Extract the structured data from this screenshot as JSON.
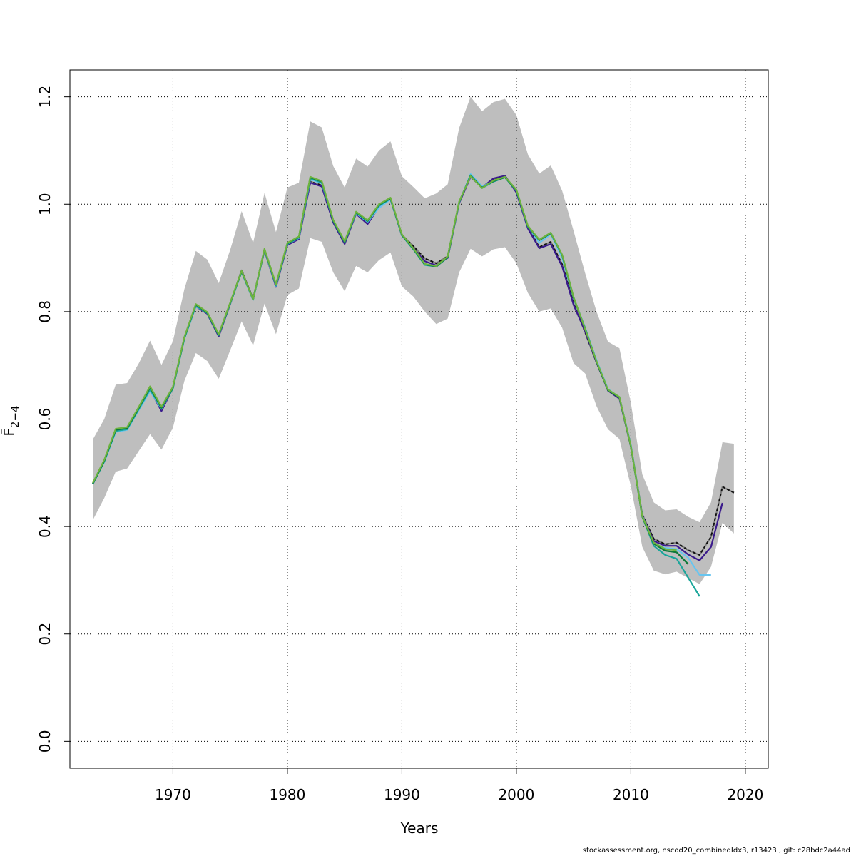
{
  "chart_data": {
    "type": "line",
    "title": "",
    "xlabel": "Years",
    "ylabel": "F̄",
    "ylabel_sub": "2−4",
    "xlim": [
      1961,
      2022
    ],
    "ylim": [
      -0.05,
      1.25
    ],
    "xticks": [
      1970,
      1980,
      1990,
      2000,
      2010,
      2020
    ],
    "yticks": [
      0.0,
      0.2,
      0.4,
      0.6,
      0.8,
      1.0,
      1.2
    ],
    "xtick_labels": [
      "1970",
      "1980",
      "1990",
      "2000",
      "2010",
      "2020"
    ],
    "ytick_labels": [
      "0.0",
      "0.2",
      "0.4",
      "0.6",
      "0.8",
      "1.0",
      "1.2"
    ],
    "grid": true,
    "confidence_band": {
      "x": [
        1963,
        1964,
        1965,
        1966,
        1967,
        1968,
        1969,
        1970,
        1971,
        1972,
        1973,
        1974,
        1975,
        1976,
        1977,
        1978,
        1979,
        1980,
        1981,
        1982,
        1983,
        1984,
        1985,
        1986,
        1987,
        1988,
        1989,
        1990,
        1991,
        1992,
        1993,
        1994,
        1995,
        1996,
        1997,
        1998,
        1999,
        2000,
        2001,
        2002,
        2003,
        2004,
        2005,
        2006,
        2007,
        2008,
        2009,
        2010,
        2011,
        2012,
        2013,
        2014,
        2015,
        2016,
        2017,
        2018,
        2019
      ],
      "upper": [
        0.562,
        0.6,
        0.664,
        0.667,
        0.703,
        0.746,
        0.701,
        0.745,
        0.842,
        0.913,
        0.897,
        0.853,
        0.915,
        0.987,
        0.928,
        1.021,
        0.948,
        1.031,
        1.04,
        1.154,
        1.143,
        1.071,
        1.031,
        1.085,
        1.07,
        1.1,
        1.117,
        1.052,
        1.032,
        1.011,
        1.02,
        1.037,
        1.142,
        1.2,
        1.173,
        1.19,
        1.196,
        1.166,
        1.093,
        1.057,
        1.072,
        1.025,
        0.95,
        0.872,
        0.8,
        0.744,
        0.732,
        0.63,
        0.497,
        0.445,
        0.43,
        0.432,
        0.418,
        0.408,
        0.445,
        0.557,
        0.554
      ],
      "lower": [
        0.412,
        0.453,
        0.502,
        0.508,
        0.54,
        0.572,
        0.543,
        0.584,
        0.671,
        0.723,
        0.708,
        0.675,
        0.728,
        0.782,
        0.737,
        0.815,
        0.758,
        0.831,
        0.843,
        0.937,
        0.93,
        0.873,
        0.838,
        0.885,
        0.873,
        0.896,
        0.91,
        0.847,
        0.828,
        0.8,
        0.777,
        0.787,
        0.873,
        0.917,
        0.903,
        0.916,
        0.92,
        0.89,
        0.835,
        0.8,
        0.806,
        0.77,
        0.704,
        0.685,
        0.624,
        0.581,
        0.563,
        0.475,
        0.362,
        0.318,
        0.311,
        0.316,
        0.304,
        0.293,
        0.325,
        0.407,
        0.387
      ]
    },
    "series": [
      {
        "color": "#7f7f7f",
        "dashed": false,
        "x": [
          1963,
          1964,
          1965,
          1966,
          1967,
          1968,
          1969,
          1970,
          1971,
          1972,
          1973,
          1974,
          1975,
          1976,
          1977,
          1978,
          1979,
          1980,
          1981,
          1982,
          1983,
          1984,
          1985,
          1986,
          1987,
          1988,
          1989,
          1990,
          1991,
          1992,
          1993,
          1994,
          1995,
          1996,
          1997,
          1998,
          1999,
          2000,
          2001,
          2002,
          2003,
          2004,
          2005,
          2006,
          2007,
          2008,
          2009,
          2010,
          2011,
          2012,
          2013,
          2014,
          2015,
          2016,
          2017,
          2018,
          2019
        ],
        "y": [
          0.48,
          0.523,
          0.58,
          0.583,
          0.618,
          0.657,
          0.617,
          0.659,
          0.752,
          0.811,
          0.797,
          0.755,
          0.815,
          0.877,
          0.824,
          0.915,
          0.848,
          0.925,
          0.937,
          1.042,
          1.035,
          0.968,
          0.927,
          0.983,
          0.965,
          0.997,
          1.01,
          0.943,
          0.922,
          0.899,
          0.89,
          0.903,
          1.003,
          1.052,
          1.032,
          1.046,
          1.052,
          1.023,
          0.957,
          0.92,
          0.93,
          0.888,
          0.815,
          0.762,
          0.705,
          0.654,
          0.64,
          0.551,
          0.422,
          0.377,
          0.367,
          0.37,
          0.356,
          0.347,
          0.381,
          0.474,
          0.463
        ]
      },
      {
        "color": "#111111",
        "dashed": true,
        "x": [
          1963,
          1964,
          1965,
          1966,
          1967,
          1968,
          1969,
          1970,
          1971,
          1972,
          1973,
          1974,
          1975,
          1976,
          1977,
          1978,
          1979,
          1980,
          1981,
          1982,
          1983,
          1984,
          1985,
          1986,
          1987,
          1988,
          1989,
          1990,
          1991,
          1992,
          1993,
          1994,
          1995,
          1996,
          1997,
          1998,
          1999,
          2000,
          2001,
          2002,
          2003,
          2004,
          2005,
          2006,
          2007,
          2008,
          2009,
          2010,
          2011,
          2012,
          2013,
          2014,
          2015,
          2016,
          2017,
          2018,
          2019
        ],
        "y": [
          0.48,
          0.523,
          0.58,
          0.583,
          0.618,
          0.657,
          0.617,
          0.659,
          0.752,
          0.811,
          0.797,
          0.755,
          0.815,
          0.877,
          0.824,
          0.915,
          0.848,
          0.925,
          0.937,
          1.042,
          1.035,
          0.968,
          0.927,
          0.983,
          0.965,
          0.997,
          1.01,
          0.943,
          0.922,
          0.899,
          0.89,
          0.903,
          1.003,
          1.052,
          1.032,
          1.046,
          1.052,
          1.023,
          0.957,
          0.92,
          0.93,
          0.888,
          0.815,
          0.762,
          0.705,
          0.654,
          0.64,
          0.551,
          0.422,
          0.377,
          0.367,
          0.37,
          0.356,
          0.347,
          0.381,
          0.474,
          0.463
        ]
      },
      {
        "color": "#3a1a8c",
        "dashed": false,
        "x": [
          1963,
          1964,
          1965,
          1966,
          1967,
          1968,
          1969,
          1970,
          1971,
          1972,
          1973,
          1974,
          1975,
          1976,
          1977,
          1978,
          1979,
          1980,
          1981,
          1982,
          1983,
          1984,
          1985,
          1986,
          1987,
          1988,
          1989,
          1990,
          1991,
          1992,
          1993,
          1994,
          1995,
          1996,
          1997,
          1998,
          1999,
          2000,
          2001,
          2002,
          2003,
          2004,
          2005,
          2006,
          2007,
          2008,
          2009,
          2010,
          2011,
          2012,
          2013,
          2014,
          2015,
          2016,
          2017,
          2018
        ],
        "y": [
          0.479,
          0.522,
          0.579,
          0.582,
          0.617,
          0.655,
          0.615,
          0.658,
          0.751,
          0.81,
          0.796,
          0.754,
          0.814,
          0.876,
          0.823,
          0.914,
          0.846,
          0.924,
          0.935,
          1.04,
          1.033,
          0.966,
          0.926,
          0.982,
          0.963,
          0.995,
          1.009,
          0.942,
          0.918,
          0.894,
          0.886,
          0.9,
          1.002,
          1.051,
          1.031,
          1.048,
          1.053,
          1.022,
          0.955,
          0.918,
          0.926,
          0.884,
          0.812,
          0.764,
          0.706,
          0.653,
          0.638,
          0.549,
          0.42,
          0.373,
          0.364,
          0.364,
          0.348,
          0.337,
          0.362,
          0.444
        ]
      },
      {
        "color": "#67c5f0",
        "dashed": false,
        "x": [
          1963,
          1964,
          1965,
          1966,
          1967,
          1968,
          1969,
          1970,
          1971,
          1972,
          1973,
          1974,
          1975,
          1976,
          1977,
          1978,
          1979,
          1980,
          1981,
          1982,
          1983,
          1984,
          1985,
          1986,
          1987,
          1988,
          1989,
          1990,
          1991,
          1992,
          1993,
          1994,
          1995,
          1996,
          1997,
          1998,
          1999,
          2000,
          2001,
          2002,
          2003,
          2004,
          2005,
          2006,
          2007,
          2008,
          2009,
          2010,
          2011,
          2012,
          2013,
          2014,
          2015,
          2016,
          2017
        ],
        "y": [
          0.48,
          0.52,
          0.576,
          0.58,
          0.616,
          0.652,
          0.619,
          0.658,
          0.75,
          0.81,
          0.798,
          0.757,
          0.815,
          0.874,
          0.822,
          0.915,
          0.848,
          0.926,
          0.937,
          1.046,
          1.039,
          0.97,
          0.93,
          0.983,
          0.967,
          0.993,
          1.009,
          0.943,
          0.917,
          0.889,
          0.885,
          0.902,
          1.003,
          1.056,
          1.033,
          1.042,
          1.05,
          1.025,
          0.959,
          0.928,
          0.944,
          0.9,
          0.825,
          0.77,
          0.71,
          0.656,
          0.64,
          0.552,
          0.42,
          0.368,
          0.36,
          0.358,
          0.342,
          0.31,
          0.31
        ]
      },
      {
        "color": "#1aa59a",
        "dashed": false,
        "x": [
          1963,
          1964,
          1965,
          1966,
          1967,
          1968,
          1969,
          1970,
          1971,
          1972,
          1973,
          1974,
          1975,
          1976,
          1977,
          1978,
          1979,
          1980,
          1981,
          1982,
          1983,
          1984,
          1985,
          1986,
          1987,
          1988,
          1989,
          1990,
          1991,
          1992,
          1993,
          1994,
          1995,
          1996,
          1997,
          1998,
          1999,
          2000,
          2001,
          2002,
          2003,
          2004,
          2005,
          2006,
          2007,
          2008,
          2009,
          2010,
          2011,
          2012,
          2013,
          2014,
          2015,
          2016
        ],
        "y": [
          0.479,
          0.521,
          0.578,
          0.581,
          0.618,
          0.655,
          0.62,
          0.657,
          0.75,
          0.811,
          0.797,
          0.756,
          0.815,
          0.874,
          0.822,
          0.915,
          0.849,
          0.926,
          0.938,
          1.048,
          1.04,
          0.969,
          0.929,
          0.984,
          0.968,
          0.997,
          1.01,
          0.942,
          0.916,
          0.887,
          0.884,
          0.901,
          1.004,
          1.054,
          1.03,
          1.042,
          1.05,
          1.025,
          0.958,
          0.933,
          0.947,
          0.905,
          0.825,
          0.77,
          0.707,
          0.654,
          0.641,
          0.55,
          0.418,
          0.364,
          0.347,
          0.34,
          0.305,
          0.27
        ]
      },
      {
        "color": "#0d7a3a",
        "dashed": false,
        "x": [
          1963,
          1964,
          1965,
          1966,
          1967,
          1968,
          1969,
          1970,
          1971,
          1972,
          1973,
          1974,
          1975,
          1976,
          1977,
          1978,
          1979,
          1980,
          1981,
          1982,
          1983,
          1984,
          1985,
          1986,
          1987,
          1988,
          1989,
          1990,
          1991,
          1992,
          1993,
          1994,
          1995,
          1996,
          1997,
          1998,
          1999,
          2000,
          2001,
          2002,
          2003,
          2004,
          2005,
          2006,
          2007,
          2008,
          2009,
          2010,
          2011,
          2012,
          2013,
          2014,
          2015
        ],
        "y": [
          0.48,
          0.522,
          0.58,
          0.583,
          0.62,
          0.659,
          0.621,
          0.659,
          0.752,
          0.813,
          0.798,
          0.757,
          0.816,
          0.875,
          0.823,
          0.916,
          0.85,
          0.927,
          0.939,
          1.05,
          1.042,
          0.97,
          0.93,
          0.985,
          0.969,
          0.999,
          1.011,
          0.943,
          0.917,
          0.888,
          0.884,
          0.902,
          1.004,
          1.053,
          1.031,
          1.043,
          1.05,
          1.026,
          0.959,
          0.933,
          0.946,
          0.905,
          0.826,
          0.768,
          0.707,
          0.654,
          0.64,
          0.549,
          0.418,
          0.368,
          0.355,
          0.352,
          0.33
        ]
      },
      {
        "color": "#6db33f",
        "dashed": false,
        "x": [
          1963,
          1964,
          1965,
          1966,
          1967,
          1968,
          1969,
          1970,
          1971,
          1972,
          1973,
          1974,
          1975,
          1976,
          1977,
          1978,
          1979,
          1980,
          1981,
          1982,
          1983,
          1984,
          1985,
          1986,
          1987,
          1988,
          1989,
          1990,
          1991,
          1992,
          1993,
          1994,
          1995,
          1996,
          1997,
          1998,
          1999,
          2000,
          2001,
          2002,
          2003,
          2004,
          2005,
          2006,
          2007,
          2008,
          2009,
          2010,
          2011,
          2012,
          2013,
          2014
        ],
        "y": [
          0.481,
          0.524,
          0.582,
          0.585,
          0.622,
          0.661,
          0.623,
          0.66,
          0.753,
          0.814,
          0.799,
          0.758,
          0.817,
          0.876,
          0.823,
          0.917,
          0.851,
          0.928,
          0.94,
          1.051,
          1.043,
          0.971,
          0.931,
          0.986,
          0.97,
          1.0,
          1.012,
          0.944,
          0.918,
          0.889,
          0.885,
          0.903,
          1.005,
          1.052,
          1.03,
          1.044,
          1.051,
          1.027,
          0.96,
          0.934,
          0.947,
          0.906,
          0.827,
          0.768,
          0.708,
          0.655,
          0.641,
          0.55,
          0.419,
          0.37,
          0.358,
          0.356
        ]
      }
    ]
  },
  "footer": {
    "text": "stockassessment.org, nscod20_combinedIdx3, r13423 , git: c28bdc2a44ad"
  }
}
